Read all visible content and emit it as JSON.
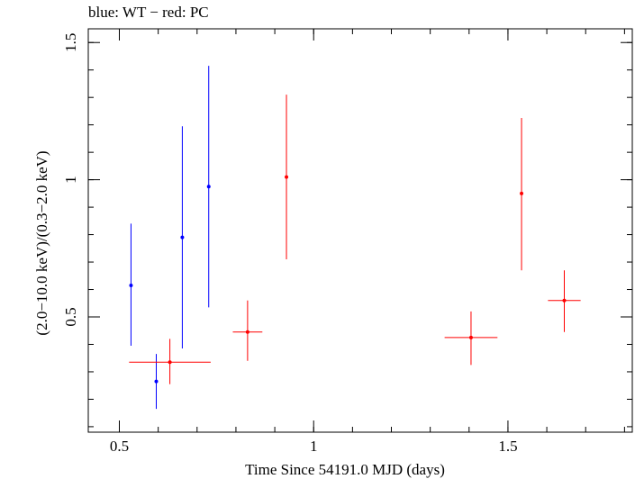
{
  "chart_data": {
    "type": "scatter",
    "title": "blue: WT − red: PC",
    "xlabel": "Time Since 54191.0 MJD (days)",
    "ylabel": "(2.0−10.0 keV)/(0.3−2.0 keV)",
    "xlim": [
      0.42,
      1.82
    ],
    "ylim": [
      0.08,
      1.55
    ],
    "xticks": [
      {
        "value": 0.5,
        "label": "0.5"
      },
      {
        "value": 1.0,
        "label": "1"
      },
      {
        "value": 1.5,
        "label": "1.5"
      }
    ],
    "yticks": [
      {
        "value": 0.5,
        "label": "0.5"
      },
      {
        "value": 1.0,
        "label": "1"
      },
      {
        "value": 1.5,
        "label": "1.5"
      }
    ],
    "x_minor_step": 0.1,
    "y_minor_step": 0.1,
    "grid": false,
    "series": [
      {
        "name": "WT",
        "color": "#0000ff",
        "points": [
          {
            "x": 0.53,
            "xerr": 0.0,
            "y": 0.615,
            "ylo": 0.395,
            "yhi": 0.84
          },
          {
            "x": 0.595,
            "xerr": 0.0,
            "y": 0.265,
            "ylo": 0.165,
            "yhi": 0.365
          },
          {
            "x": 0.662,
            "xerr": 0.0,
            "y": 0.79,
            "ylo": 0.385,
            "yhi": 1.195
          },
          {
            "x": 0.73,
            "xerr": 0.0,
            "y": 0.975,
            "ylo": 0.535,
            "yhi": 1.415
          }
        ]
      },
      {
        "name": "PC",
        "color": "#ff0000",
        "points": [
          {
            "x": 0.63,
            "xerr": 0.105,
            "y": 0.335,
            "ylo": 0.255,
            "yhi": 0.42
          },
          {
            "x": 0.83,
            "xerr": 0.038,
            "y": 0.445,
            "ylo": 0.34,
            "yhi": 0.56
          },
          {
            "x": 0.93,
            "xerr": 0.0,
            "y": 1.01,
            "ylo": 0.71,
            "yhi": 1.31
          },
          {
            "x": 1.405,
            "xerr": 0.068,
            "y": 0.425,
            "ylo": 0.325,
            "yhi": 0.52
          },
          {
            "x": 1.535,
            "xerr": 0.0,
            "y": 0.95,
            "ylo": 0.67,
            "yhi": 1.225
          },
          {
            "x": 1.645,
            "xerr": 0.042,
            "y": 0.56,
            "ylo": 0.445,
            "yhi": 0.67
          }
        ]
      }
    ]
  }
}
